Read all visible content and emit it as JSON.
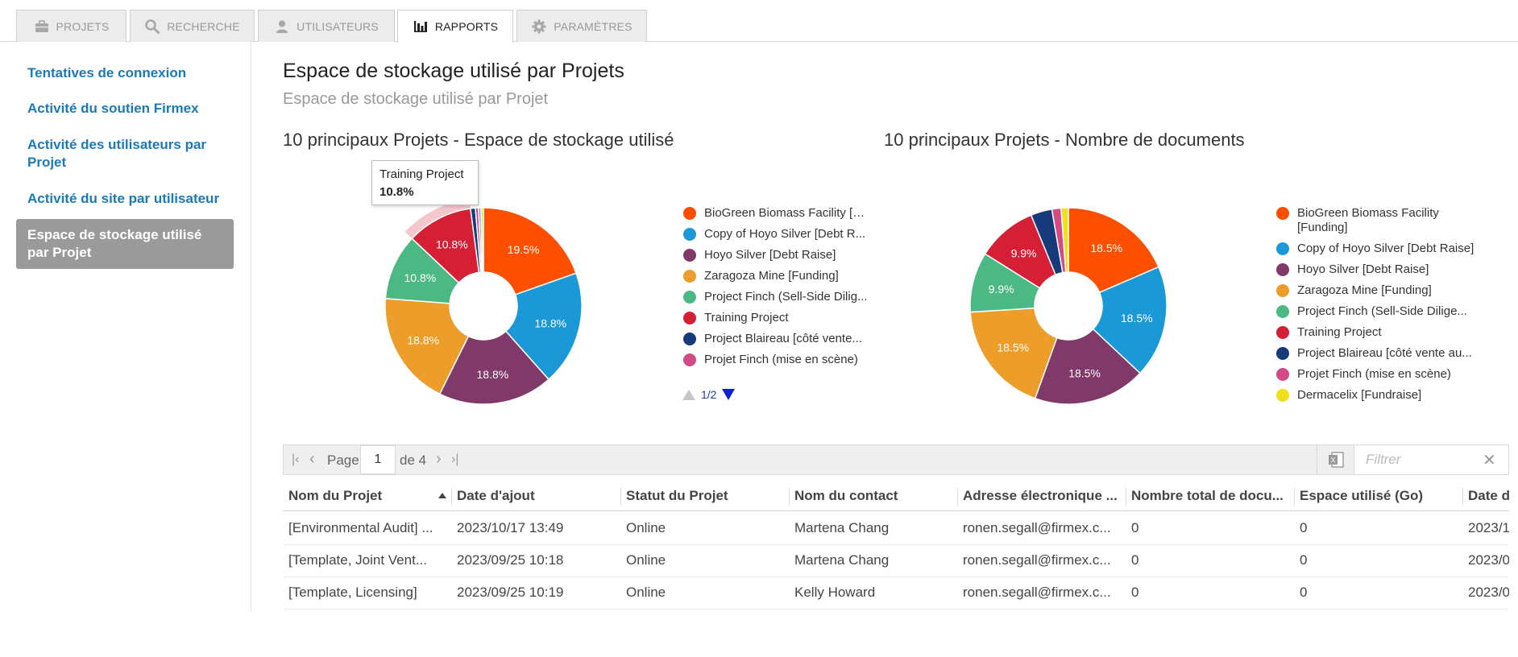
{
  "tabs": [
    {
      "label": "PROJETS",
      "icon": "briefcase-icon"
    },
    {
      "label": "RECHERCHE",
      "icon": "search-icon"
    },
    {
      "label": "UTILISATEURS",
      "icon": "user-icon"
    },
    {
      "label": "RAPPORTS",
      "icon": "bar-chart-icon",
      "active": true
    },
    {
      "label": "PARAMÈTRES",
      "icon": "gear-icon"
    }
  ],
  "sidebar": {
    "items": [
      {
        "label": "Tentatives de connexion"
      },
      {
        "label": "Activité du soutien Firmex"
      },
      {
        "label": "Activité des utilisateurs par Projet"
      },
      {
        "label": "Activité du site par utilisateur"
      },
      {
        "label": "Espace de stockage utilisé par Projet",
        "active": true
      }
    ]
  },
  "page": {
    "title": "Espace de stockage utilisé par Projets",
    "subtitle": "Espace de stockage utilisé par Projet"
  },
  "colors": {
    "orange": "#fc4f00",
    "blue": "#1b98d6",
    "plum": "#803968",
    "amber": "#ec9d2a",
    "green": "#4cb884",
    "red": "#d41f35",
    "navy": "#173b7a",
    "pink": "#d24b87",
    "yellow": "#efe01e",
    "lightblue": "#6a9bd8"
  },
  "chart_data": [
    {
      "type": "pie",
      "title": "10 principaux Projets - Espace de stockage utilisé",
      "slices": [
        {
          "name": "BioGreen Biomass Facility [F...",
          "value": 19.5,
          "label": "19.5%",
          "color": "#fc4f00"
        },
        {
          "name": "Copy of Hoyo Silver [Debt R...",
          "value": 18.8,
          "label": "18.8%",
          "color": "#1b98d6"
        },
        {
          "name": "Hoyo Silver [Debt Raise]",
          "value": 18.8,
          "label": "18.8%",
          "color": "#803968"
        },
        {
          "name": "Zaragoza Mine [Funding]",
          "value": 18.8,
          "label": "18.8%",
          "color": "#ec9d2a"
        },
        {
          "name": "Project Finch (Sell-Side Dilig...",
          "value": 10.8,
          "label": "10.8%",
          "color": "#4cb884"
        },
        {
          "name": "Training Project",
          "value": 10.8,
          "label": "10.8%",
          "color": "#d41f35"
        },
        {
          "name": "Project Blaireau [côté vente...",
          "value": 0.8,
          "label": "",
          "color": "#173b7a"
        },
        {
          "name": "Projet Finch (mise en scène)",
          "value": 0.5,
          "label": "",
          "color": "#d24b87"
        },
        {
          "name": "",
          "value": 0.4,
          "label": "",
          "color": "#6a9bd8"
        },
        {
          "name": "",
          "value": 0.4,
          "label": "",
          "color": "#efe01e"
        }
      ],
      "legend_page": "1/2",
      "tooltip": {
        "name": "Training Project",
        "value": "10.8%"
      }
    },
    {
      "type": "pie",
      "title": "10 principaux Projets - Nombre de documents",
      "slices": [
        {
          "name": "BioGreen Biomass Facility [Funding]",
          "value": 18.5,
          "label": "18.5%",
          "color": "#fc4f00"
        },
        {
          "name": "Copy of Hoyo Silver [Debt Raise]",
          "value": 18.5,
          "label": "18.5%",
          "color": "#1b98d6"
        },
        {
          "name": "Hoyo Silver [Debt Raise]",
          "value": 18.5,
          "label": "18.5%",
          "color": "#803968"
        },
        {
          "name": "Zaragoza Mine [Funding]",
          "value": 18.5,
          "label": "18.5%",
          "color": "#ec9d2a"
        },
        {
          "name": "Project Finch (Sell-Side Dilige...",
          "value": 9.9,
          "label": "9.9%",
          "color": "#4cb884"
        },
        {
          "name": "Training Project",
          "value": 9.9,
          "label": "9.9%",
          "color": "#d41f35"
        },
        {
          "name": "Project Blaireau [côté vente au...",
          "value": 3.5,
          "label": "",
          "color": "#173b7a"
        },
        {
          "name": "Projet Finch (mise en scène)",
          "value": 1.5,
          "label": "",
          "color": "#d24b87"
        },
        {
          "name": "Dermacelix [Fundraise]",
          "value": 1.2,
          "label": "",
          "color": "#efe01e"
        }
      ]
    }
  ],
  "table_toolbar": {
    "page_label": "Page",
    "page_value": "1",
    "of_label": "de 4",
    "filter_placeholder": "Filtrer",
    "clear_symbol": "✕"
  },
  "table": {
    "columns": [
      {
        "label": "Nom du Projet",
        "sorted": "asc"
      },
      {
        "label": "Date d'ajout"
      },
      {
        "label": "Statut du Projet"
      },
      {
        "label": "Nom du contact"
      },
      {
        "label": "Adresse électronique ..."
      },
      {
        "label": "Nombre total de docu..."
      },
      {
        "label": "Espace utilisé (Go)"
      },
      {
        "label": "Date d"
      }
    ],
    "rows": [
      [
        "[Environmental Audit] ...",
        "2023/10/17 13:49",
        "Online",
        "Martena Chang",
        "ronen.segall@firmex.c...",
        "0",
        "0",
        "2023/1"
      ],
      [
        "[Template, Joint Vent...",
        "2023/09/25 10:18",
        "Online",
        "Martena Chang",
        "ronen.segall@firmex.c...",
        "0",
        "0",
        "2023/0"
      ],
      [
        "[Template, Licensing]",
        "2023/09/25 10:19",
        "Online",
        "Kelly Howard",
        "ronen.segall@firmex.c...",
        "0",
        "0",
        "2023/0"
      ]
    ]
  }
}
